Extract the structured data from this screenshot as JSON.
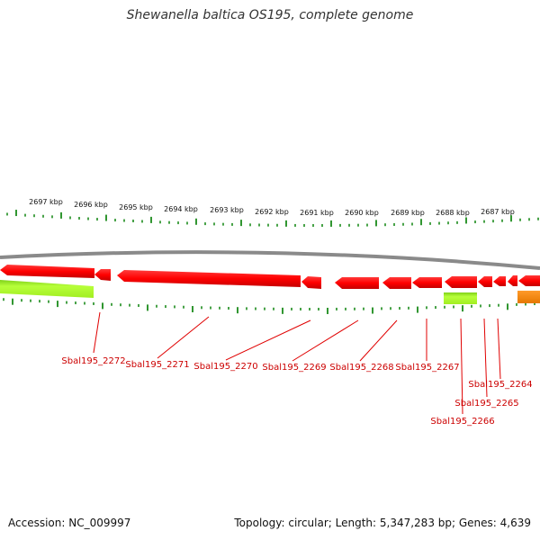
{
  "header": {
    "title": "Shewanella baltica OS195, complete genome"
  },
  "ruler": {
    "labels": [
      "2697 kbp",
      "2696 kbp",
      "2695 kbp",
      "2694 kbp",
      "2693 kbp",
      "2692 kbp",
      "2691 kbp",
      "2690 kbp",
      "2689 kbp",
      "2688 kbp",
      "2687 kbp"
    ]
  },
  "genes": {
    "labels": [
      "Sbal195_2272",
      "Sbal195_2271",
      "Sbal195_2270",
      "Sbal195_2269",
      "Sbal195_2268",
      "Sbal195_2267",
      "Sbal195_2266",
      "Sbal195_2265",
      "Sbal195_2264"
    ]
  },
  "colors": {
    "backbone": "#888888",
    "cds": "#ff0000",
    "rna": "#99ee22",
    "other": "#ff8800",
    "tick": "#1a8a1a",
    "label": "#cc0000"
  },
  "footer": {
    "accession": "Accession: NC_009997",
    "summary": "Topology: circular; Length: 5,347,283 bp; Genes: 4,639"
  }
}
